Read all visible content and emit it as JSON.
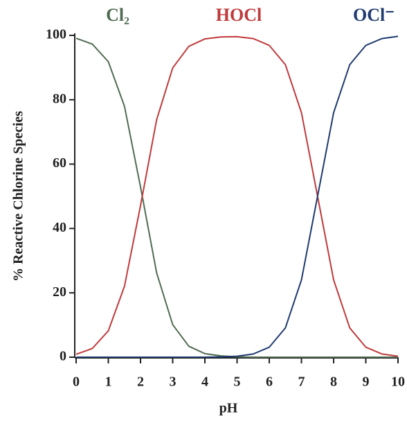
{
  "chart_data": {
    "type": "line",
    "xlabel": "pH",
    "ylabel": "% Reactive Chlorine Species",
    "x": [
      0,
      0.5,
      1,
      1.5,
      2,
      2.5,
      3,
      3.5,
      4,
      4.5,
      5,
      5.5,
      6,
      6.5,
      7,
      7.5,
      8,
      8.5,
      9,
      9.5,
      10
    ],
    "series": [
      {
        "name": "Cl₂",
        "color": "#4f6b52",
        "values": [
          99.1,
          97.3,
          91.8,
          78.0,
          52.9,
          26.2,
          10.1,
          3.4,
          1.1,
          0.4,
          0.1,
          0.0,
          0.0,
          0.0,
          0.0,
          0.0,
          0.0,
          0.0,
          0.0,
          0.0,
          0.0
        ]
      },
      {
        "name": "HOCl",
        "color": "#c0393b",
        "values": [
          0.9,
          2.7,
          8.2,
          22.0,
          47.1,
          73.8,
          89.9,
          96.6,
          98.9,
          99.5,
          99.6,
          99.0,
          96.9,
          90.9,
          76.0,
          50.0,
          24.0,
          9.1,
          3.1,
          1.0,
          0.3
        ]
      },
      {
        "name": "OCl⁻",
        "color": "#1f3a6e",
        "values": [
          0.0,
          0.0,
          0.0,
          0.0,
          0.0,
          0.0,
          0.0,
          0.0,
          0.0,
          0.1,
          0.3,
          1.0,
          3.1,
          9.1,
          24.0,
          50.0,
          76.0,
          90.9,
          96.9,
          99.0,
          99.7
        ]
      }
    ],
    "xlim": [
      0,
      10
    ],
    "xticks": [
      0,
      1,
      2,
      3,
      4,
      5,
      6,
      7,
      8,
      9,
      10
    ],
    "ylim": [
      0,
      100
    ],
    "yticks": [
      0,
      20,
      40,
      60,
      80,
      100
    ]
  }
}
